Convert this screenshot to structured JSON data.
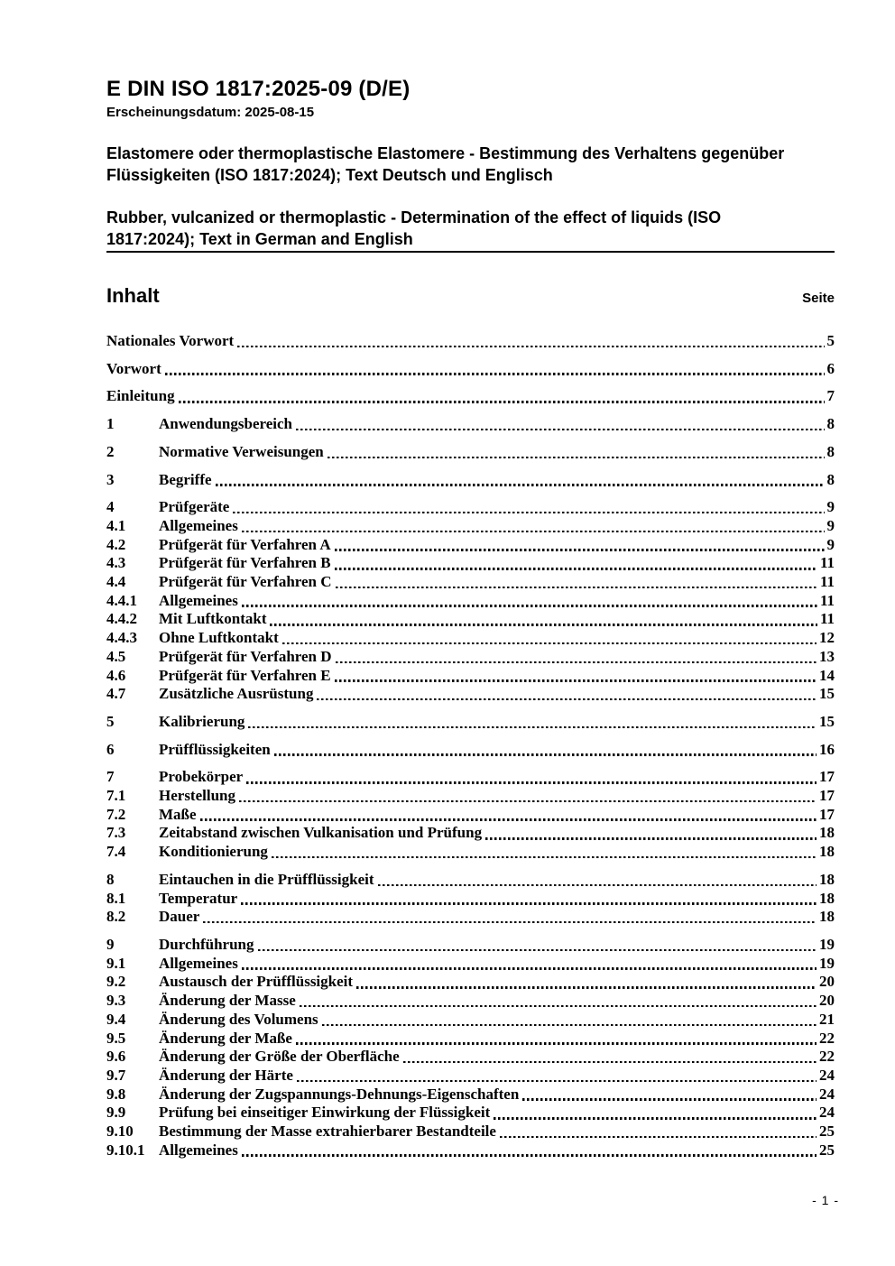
{
  "header": {
    "doc_number": "E DIN ISO 1817:2025-09 (D/E)",
    "release_label": "Erscheinungsdatum: 2025-08-15",
    "title_de": "Elastomere oder thermoplastische Elastomere - Bestimmung des Verhaltens gegenüber Flüssigkeiten (ISO 1817:2024); Text Deutsch und Englisch",
    "title_en": "Rubber, vulcanized or thermoplastic - Determination of the effect of liquids (ISO 1817:2024); Text in German and English"
  },
  "toc": {
    "heading": "Inhalt",
    "page_column_label": "Seite",
    "groups": [
      {
        "entries": [
          {
            "num": "",
            "title": "Nationales Vorwort",
            "page": "5"
          }
        ]
      },
      {
        "entries": [
          {
            "num": "",
            "title": "Vorwort",
            "page": "6"
          }
        ]
      },
      {
        "entries": [
          {
            "num": "",
            "title": "Einleitung",
            "page": "7"
          }
        ]
      },
      {
        "entries": [
          {
            "num": "1",
            "title": "Anwendungsbereich",
            "page": "8"
          }
        ]
      },
      {
        "entries": [
          {
            "num": "2",
            "title": "Normative Verweisungen",
            "page": "8"
          }
        ]
      },
      {
        "entries": [
          {
            "num": "3",
            "title": "Begriffe",
            "page": "8"
          }
        ]
      },
      {
        "entries": [
          {
            "num": "4",
            "title": "Prüfgeräte",
            "page": "9"
          },
          {
            "num": "4.1",
            "title": "Allgemeines",
            "page": "9"
          },
          {
            "num": "4.2",
            "title": "Prüfgerät für Verfahren A",
            "page": "9"
          },
          {
            "num": "4.3",
            "title": "Prüfgerät für Verfahren B",
            "page": "11"
          },
          {
            "num": "4.4",
            "title": "Prüfgerät für Verfahren C",
            "page": "11"
          },
          {
            "num": "4.4.1",
            "title": "Allgemeines",
            "page": "11"
          },
          {
            "num": "4.4.2",
            "title": "Mit Luftkontakt",
            "page": "11"
          },
          {
            "num": "4.4.3",
            "title": "Ohne Luftkontakt",
            "page": "12"
          },
          {
            "num": "4.5",
            "title": "Prüfgerät für Verfahren D",
            "page": "13"
          },
          {
            "num": "4.6",
            "title": "Prüfgerät für Verfahren E",
            "page": "14"
          },
          {
            "num": "4.7",
            "title": "Zusätzliche Ausrüstung",
            "page": "15"
          }
        ]
      },
      {
        "entries": [
          {
            "num": "5",
            "title": "Kalibrierung",
            "page": "15"
          }
        ]
      },
      {
        "entries": [
          {
            "num": "6",
            "title": "Prüfflüssigkeiten",
            "page": "16"
          }
        ]
      },
      {
        "entries": [
          {
            "num": "7",
            "title": "Probekörper",
            "page": "17"
          },
          {
            "num": "7.1",
            "title": "Herstellung",
            "page": "17"
          },
          {
            "num": "7.2",
            "title": "Maße",
            "page": "17"
          },
          {
            "num": "7.3",
            "title": "Zeitabstand zwischen Vulkanisation und Prüfung",
            "page": "18"
          },
          {
            "num": "7.4",
            "title": "Konditionierung",
            "page": "18"
          }
        ]
      },
      {
        "entries": [
          {
            "num": "8",
            "title": "Eintauchen in die Prüfflüssigkeit",
            "page": "18"
          },
          {
            "num": "8.1",
            "title": "Temperatur",
            "page": "18"
          },
          {
            "num": "8.2",
            "title": "Dauer",
            "page": "18"
          }
        ]
      },
      {
        "entries": [
          {
            "num": "9",
            "title": "Durchführung",
            "page": "19"
          },
          {
            "num": "9.1",
            "title": "Allgemeines",
            "page": "19"
          },
          {
            "num": "9.2",
            "title": "Austausch der Prüfflüssigkeit",
            "page": "20"
          },
          {
            "num": "9.3",
            "title": "Änderung der Masse",
            "page": "20"
          },
          {
            "num": "9.4",
            "title": "Änderung des Volumens",
            "page": "21"
          },
          {
            "num": "9.5",
            "title": "Änderung der Maße",
            "page": "22"
          },
          {
            "num": "9.6",
            "title": "Änderung der Größe der Oberfläche",
            "page": "22"
          },
          {
            "num": "9.7",
            "title": "Änderung der Härte",
            "page": "24"
          },
          {
            "num": "9.8",
            "title": "Änderung der Zugspannungs-Dehnungs-Eigenschaften",
            "page": "24"
          },
          {
            "num": "9.9",
            "title": "Prüfung bei einseitiger Einwirkung der Flüssigkeit",
            "page": "24"
          },
          {
            "num": "9.10",
            "title": "Bestimmung der Masse extrahierbarer Bestandteile",
            "page": "25"
          },
          {
            "num": "9.10.1",
            "title": "Allgemeines",
            "page": "25"
          }
        ]
      }
    ]
  },
  "footer": {
    "page_indicator": "- 1 -"
  }
}
